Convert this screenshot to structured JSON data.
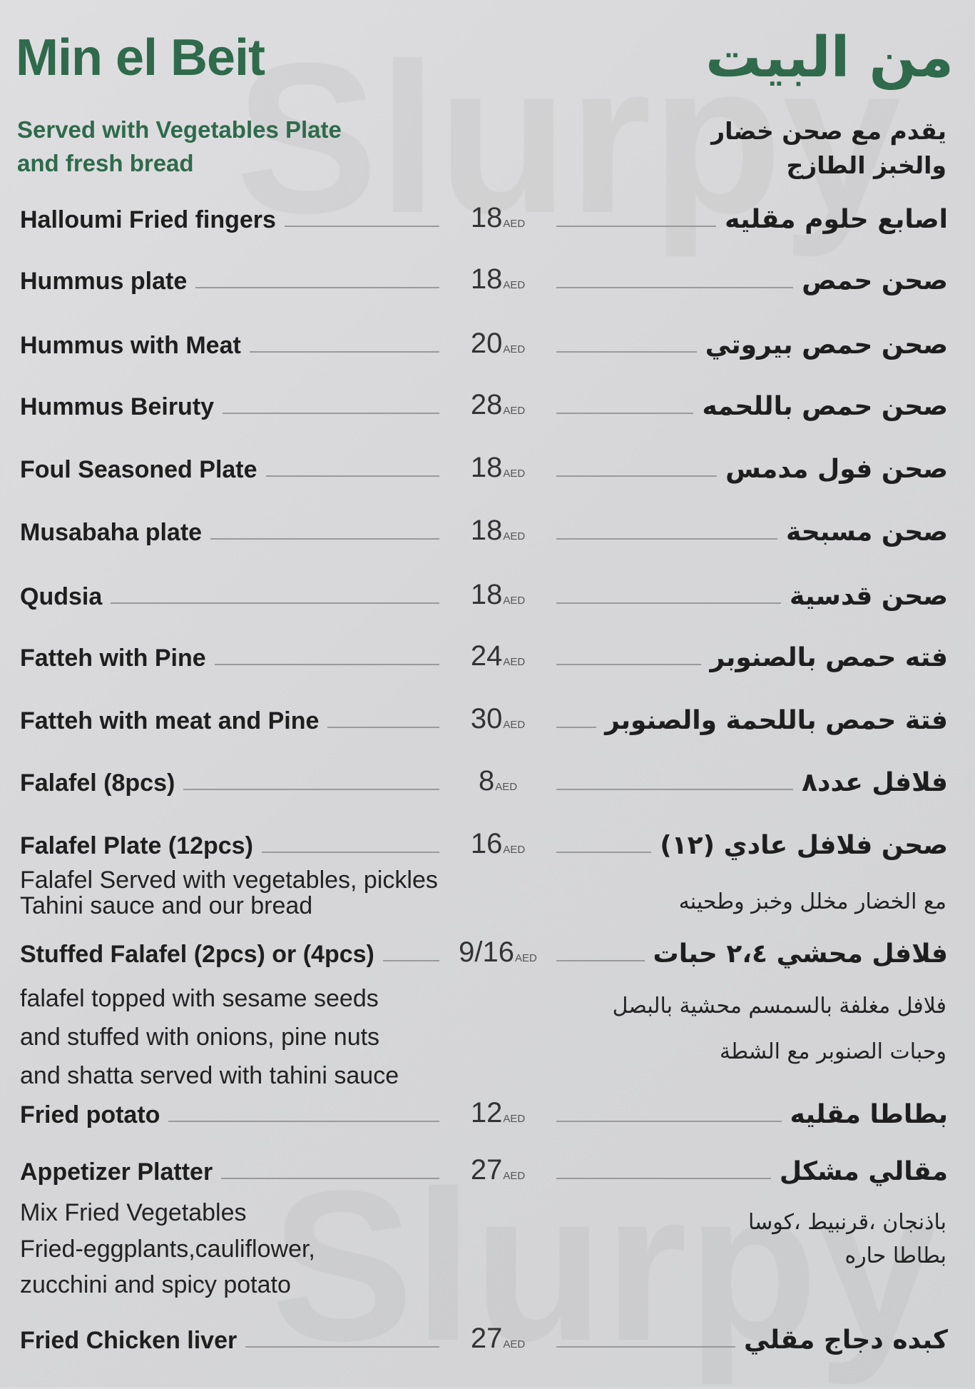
{
  "header": {
    "title_en": "Min el Beit",
    "title_ar": "من البيت",
    "subtitle_en": [
      "Served with Vegetables Plate",
      "and fresh bread"
    ],
    "subtitle_ar": [
      "يقدم مع صحن خضار",
      "والخبز الطازج"
    ]
  },
  "currency": "AED",
  "watermark": "Slurpy",
  "colors": {
    "accent": "#2e6a4b",
    "background": "#d9d9db"
  },
  "items": [
    {
      "en": "Halloumi Fried fingers",
      "price": "18",
      "ar": "اصابع حلوم مقليه"
    },
    {
      "en": "Hummus plate",
      "price": "18",
      "ar": "صحن حمص"
    },
    {
      "en": "Hummus with Meat",
      "price": "20",
      "ar": "صحن حمص بيروتي"
    },
    {
      "en": "Hummus Beiruty",
      "price": "28",
      "ar": "صحن حمص باللحمه"
    },
    {
      "en": "Foul Seasoned Plate",
      "price": "18",
      "ar": "صحن فول مدمس"
    },
    {
      "en": "Musabaha plate",
      "price": "18",
      "ar": "صحن مسبحة"
    },
    {
      "en": "Qudsia",
      "price": "18",
      "ar": "صحن قدسية"
    },
    {
      "en": "Fatteh with  Pine",
      "price": "24",
      "ar": "فته حمص بالصنوبر"
    },
    {
      "en": "Fatteh with meat and Pine",
      "price": "30",
      "ar": "فتة حمص باللحمة والصنوبر"
    },
    {
      "en": "Falafel  (8pcs)",
      "price": "8",
      "ar": "فلافل عدد٨"
    },
    {
      "en": "Falafel Plate (12pcs)",
      "price": "16",
      "ar": "صحن فلافل عادي (١٢)",
      "desc_en": [
        "Falafel Served with vegetables, pickles",
        "Tahini sauce and our bread"
      ],
      "desc_ar": [
        "مع الخضار مخلل وخبز وطحينه"
      ]
    },
    {
      "en": "Stuffed Falafel (2pcs) or (4pcs)",
      "price": "9/16",
      "ar": "فلافل محشي ٢،٤ حبات",
      "desc_en": [
        "falafel topped with sesame seeds",
        "and stuffed with onions, pine nuts",
        "and shatta served with tahini sauce"
      ],
      "desc_ar": [
        "فلافل مغلفة بالسمسم محشية بالبصل",
        "وحبات الصنوبر مع الشطة"
      ]
    },
    {
      "en": "Fried potato",
      "price": "12",
      "ar": "بطاطا مقليه"
    },
    {
      "en": "Appetizer Platter",
      "price": "27",
      "ar": "مقالي مشكل",
      "desc_en": [
        "Mix Fried Vegetables",
        "Fried-eggplants,cauliflower,",
        "zucchini and spicy potato"
      ],
      "desc_ar": [
        "باذنجان ،قرنبيط ،كوسا",
        "بطاطا حاره"
      ]
    },
    {
      "en": "Fried Chicken liver",
      "price": "27",
      "ar": "كبده دجاج مقلي"
    }
  ]
}
